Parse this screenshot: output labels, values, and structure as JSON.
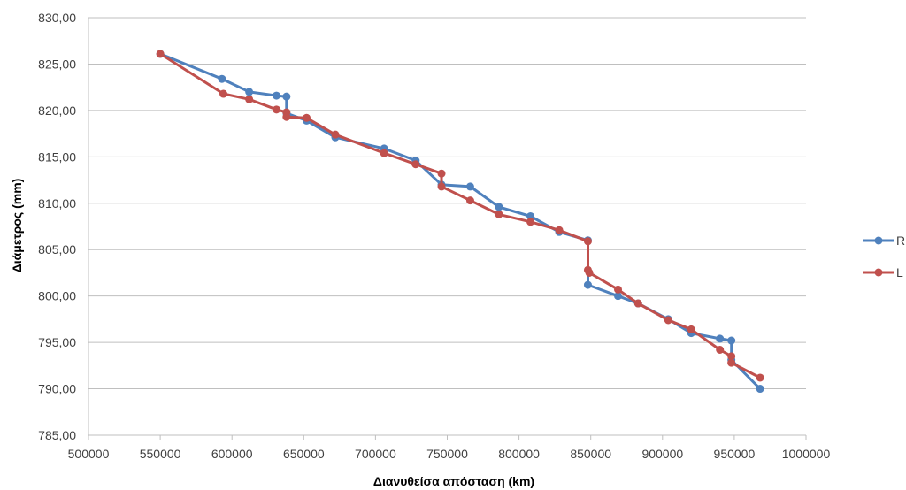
{
  "chart_data": {
    "type": "line",
    "title": "",
    "xlabel": "Διανυθείσα απόσταση (km)",
    "ylabel": "Διάμετρος (mm)",
    "xlim": [
      500000,
      1000000
    ],
    "ylim": [
      785,
      830
    ],
    "x_ticks": [
      500000,
      550000,
      600000,
      650000,
      700000,
      750000,
      800000,
      850000,
      900000,
      950000,
      1000000
    ],
    "x_tick_labels": [
      "500000",
      "550000",
      "600000",
      "650000",
      "700000",
      "750000",
      "800000",
      "850000",
      "900000",
      "950000",
      "1000000"
    ],
    "y_ticks": [
      785,
      790,
      795,
      800,
      805,
      810,
      815,
      820,
      825,
      830
    ],
    "y_tick_labels": [
      "785,00",
      "790,00",
      "795,00",
      "800,00",
      "805,00",
      "810,00",
      "815,00",
      "820,00",
      "825,00",
      "830,00"
    ],
    "grid": "horizontal",
    "legend_position": "right",
    "series": [
      {
        "name": "R",
        "color": "#4F81BD",
        "points": [
          [
            550000,
            826.1
          ],
          [
            593000,
            823.4
          ],
          [
            612000,
            822.0
          ],
          [
            631000,
            821.6
          ],
          [
            638000,
            821.5
          ],
          [
            638000,
            819.7
          ],
          [
            652000,
            818.9
          ],
          [
            672000,
            817.1
          ],
          [
            706000,
            815.9
          ],
          [
            728000,
            814.6
          ],
          [
            746000,
            812.0
          ],
          [
            766000,
            811.8
          ],
          [
            786000,
            809.6
          ],
          [
            808000,
            808.6
          ],
          [
            828000,
            806.9
          ],
          [
            848000,
            806.0
          ],
          [
            848000,
            801.2
          ],
          [
            869000,
            800.0
          ],
          [
            883000,
            799.2
          ],
          [
            904000,
            797.5
          ],
          [
            920000,
            796.0
          ],
          [
            940000,
            795.4
          ],
          [
            948000,
            795.2
          ],
          [
            948000,
            793.1
          ],
          [
            968000,
            790.0
          ]
        ]
      },
      {
        "name": "L",
        "color": "#C0504D",
        "points": [
          [
            550000,
            826.1
          ],
          [
            594000,
            821.8
          ],
          [
            612000,
            821.2
          ],
          [
            631000,
            820.1
          ],
          [
            638000,
            819.8
          ],
          [
            638000,
            819.3
          ],
          [
            652000,
            819.2
          ],
          [
            672000,
            817.4
          ],
          [
            706000,
            815.4
          ],
          [
            728000,
            814.2
          ],
          [
            746000,
            813.2
          ],
          [
            746000,
            811.8
          ],
          [
            766000,
            810.3
          ],
          [
            786000,
            808.8
          ],
          [
            808000,
            808.0
          ],
          [
            828000,
            807.1
          ],
          [
            848000,
            805.9
          ],
          [
            848000,
            802.8
          ],
          [
            849000,
            802.5
          ],
          [
            869000,
            800.7
          ],
          [
            883000,
            799.2
          ],
          [
            904000,
            797.4
          ],
          [
            920000,
            796.4
          ],
          [
            940000,
            794.2
          ],
          [
            948000,
            793.5
          ],
          [
            948000,
            792.8
          ],
          [
            968000,
            791.2
          ]
        ]
      }
    ]
  }
}
